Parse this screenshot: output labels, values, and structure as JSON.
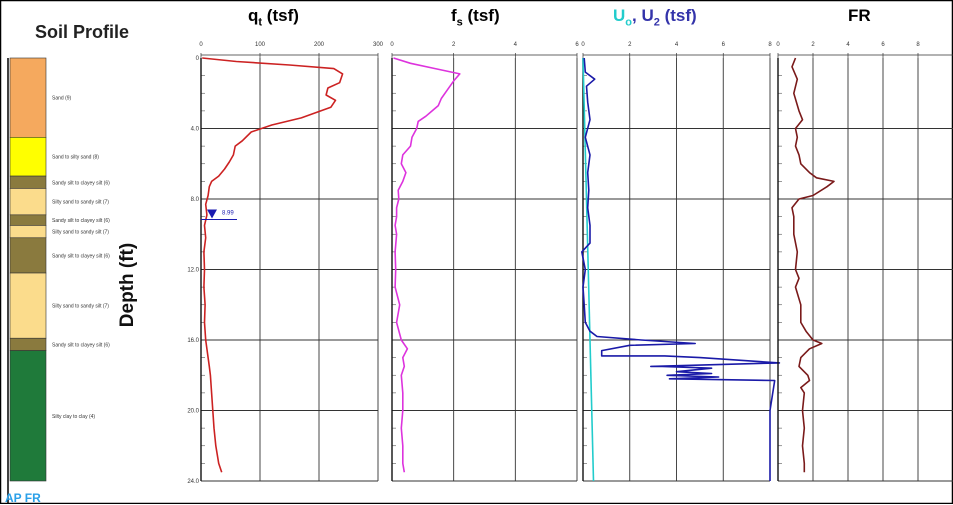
{
  "soil_profile": {
    "title": "Soil Profile",
    "layers": [
      {
        "label": "Sand (9)",
        "top": 0,
        "bottom": 4.5,
        "color": "#f5a95e"
      },
      {
        "label": "Sand to silty sand (8)",
        "top": 4.5,
        "bottom": 6.7,
        "color": "#ffff00"
      },
      {
        "label": "Sandy silt to clayey silt (6)",
        "top": 6.7,
        "bottom": 7.4,
        "color": "#8a7a3e"
      },
      {
        "label": "Silty sand to sandy silt (7)",
        "top": 7.4,
        "bottom": 8.9,
        "color": "#fbdc8c"
      },
      {
        "label": "Sandy silt to clayey silt (6)",
        "top": 8.9,
        "bottom": 9.5,
        "color": "#8a7a3e"
      },
      {
        "label": "Silty sand to sandy silt (7)",
        "top": 9.5,
        "bottom": 10.2,
        "color": "#fbdc8c"
      },
      {
        "label": "Sandy silt to clayey silt (6)",
        "top": 10.2,
        "bottom": 12.2,
        "color": "#8a7a3e"
      },
      {
        "label": "Silty sand to sandy silt (7)",
        "top": 12.2,
        "bottom": 15.9,
        "color": "#fbdc8c"
      },
      {
        "label": "Sandy silt to clayey silt (6)",
        "top": 15.9,
        "bottom": 16.6,
        "color": "#8a7a3e"
      },
      {
        "label": "Silty clay to clay (4)",
        "top": 16.6,
        "bottom": 24.0,
        "color": "#1f7a3a"
      }
    ]
  },
  "ylabel": "Depth (ft)",
  "corner_label": "AP  FR",
  "water_table": {
    "depth": 8.99,
    "label": "8.99"
  },
  "chart_data": [
    {
      "type": "line",
      "title_main": "q",
      "title_sub": "t",
      "title_rest": " (tsf)",
      "title_color": "#cc0000",
      "xlim": [
        0,
        300
      ],
      "ylim": [
        0,
        24
      ],
      "x_ticks": [
        0,
        100,
        200,
        300
      ],
      "x_tick_labels": [
        "0",
        "100",
        "200",
        "300"
      ],
      "y_ticks": [
        0,
        4,
        8,
        12,
        16,
        20,
        24
      ],
      "y_tick_labels": [
        "0",
        "4.0",
        "8.0",
        "12.0",
        "16.0",
        "20.0",
        "24.0"
      ],
      "series": [
        {
          "color": "#cc2222",
          "points": [
            [
              2,
              0.0
            ],
            [
              60,
              0.2
            ],
            [
              150,
              0.4
            ],
            [
              225,
              0.6
            ],
            [
              240,
              0.9
            ],
            [
              235,
              1.4
            ],
            [
              215,
              1.7
            ],
            [
              212,
              2.1
            ],
            [
              228,
              2.4
            ],
            [
              220,
              2.8
            ],
            [
              170,
              3.4
            ],
            [
              120,
              3.8
            ],
            [
              85,
              4.2
            ],
            [
              70,
              4.7
            ],
            [
              58,
              5.0
            ],
            [
              55,
              5.5
            ],
            [
              48,
              5.9
            ],
            [
              40,
              6.3
            ],
            [
              30,
              6.7
            ],
            [
              18,
              7.0
            ],
            [
              14,
              7.3
            ],
            [
              12,
              7.8
            ],
            [
              8,
              8.3
            ],
            [
              10,
              8.9
            ],
            [
              6,
              9.5
            ],
            [
              8,
              10.2
            ],
            [
              5,
              11.0
            ],
            [
              6,
              12.0
            ],
            [
              5,
              13.0
            ],
            [
              7,
              14.0
            ],
            [
              6,
              15.0
            ],
            [
              8,
              16.0
            ],
            [
              10,
              16.5
            ],
            [
              12,
              17.0
            ],
            [
              14,
              17.5
            ],
            [
              16,
              18.0
            ],
            [
              18,
              19.0
            ],
            [
              20,
              20.0
            ],
            [
              22,
              21.0
            ],
            [
              25,
              22.0
            ],
            [
              30,
              23.0
            ],
            [
              35,
              23.5
            ]
          ]
        }
      ]
    },
    {
      "type": "line",
      "title_main": "f",
      "title_sub": "s",
      "title_rest": " (tsf)",
      "title_color": "#ee44ee",
      "xlim": [
        0,
        6
      ],
      "ylim": [
        0,
        24
      ],
      "x_ticks": [
        0,
        2,
        4,
        6
      ],
      "x_tick_labels": [
        "0",
        "2",
        "4",
        "6"
      ],
      "series": [
        {
          "color": "#dd33dd",
          "points": [
            [
              0.05,
              0.0
            ],
            [
              0.6,
              0.3
            ],
            [
              1.4,
              0.6
            ],
            [
              2.2,
              0.9
            ],
            [
              2.0,
              1.3
            ],
            [
              1.8,
              1.8
            ],
            [
              1.6,
              2.3
            ],
            [
              1.5,
              2.7
            ],
            [
              1.3,
              3.0
            ],
            [
              1.1,
              3.3
            ],
            [
              0.85,
              3.6
            ],
            [
              0.8,
              4.0
            ],
            [
              0.65,
              4.5
            ],
            [
              0.6,
              5.0
            ],
            [
              0.35,
              5.5
            ],
            [
              0.3,
              6.0
            ],
            [
              0.45,
              6.5
            ],
            [
              0.35,
              7.0
            ],
            [
              0.2,
              7.5
            ],
            [
              0.22,
              8.0
            ],
            [
              0.15,
              8.5
            ],
            [
              0.15,
              9.0
            ],
            [
              0.1,
              9.5
            ],
            [
              0.15,
              10.0
            ],
            [
              0.1,
              11.0
            ],
            [
              0.12,
              12.0
            ],
            [
              0.1,
              13.0
            ],
            [
              0.25,
              14.0
            ],
            [
              0.15,
              15.0
            ],
            [
              0.3,
              16.0
            ],
            [
              0.5,
              16.5
            ],
            [
              0.35,
              17.0
            ],
            [
              0.4,
              17.5
            ],
            [
              0.3,
              18.0
            ],
            [
              0.35,
              19.0
            ],
            [
              0.35,
              20.0
            ],
            [
              0.3,
              21.0
            ],
            [
              0.35,
              22.0
            ],
            [
              0.35,
              23.0
            ],
            [
              0.4,
              23.5
            ]
          ]
        }
      ]
    },
    {
      "type": "line",
      "title_main": "U",
      "title_sub": "o",
      "title_mid": ", U",
      "title_sub2": "2",
      "title_rest": " (tsf)",
      "title_color_main": "#22cccc",
      "title_color_mid": "#3333aa",
      "xlim": [
        0,
        8
      ],
      "ylim": [
        0,
        24
      ],
      "x_ticks": [
        0,
        2,
        4,
        6,
        8
      ],
      "x_tick_labels": [
        "0",
        "2",
        "4",
        "6",
        "8"
      ],
      "series": [
        {
          "color": "#22cccc",
          "points": [
            [
              0.0,
              0.0
            ],
            [
              0.45,
              24.0
            ]
          ]
        },
        {
          "color": "#1a1aa8",
          "points": [
            [
              0.05,
              0.0
            ],
            [
              0.1,
              0.8
            ],
            [
              0.5,
              1.2
            ],
            [
              0.15,
              1.6
            ],
            [
              0.2,
              2.5
            ],
            [
              0.3,
              3.5
            ],
            [
              0.1,
              4.5
            ],
            [
              0.3,
              5.5
            ],
            [
              0.2,
              6.5
            ],
            [
              0.25,
              7.5
            ],
            [
              0.2,
              8.5
            ],
            [
              0.3,
              9.5
            ],
            [
              0.3,
              10.5
            ],
            [
              -0.05,
              11.0
            ],
            [
              0.1,
              12.0
            ],
            [
              0.0,
              13.0
            ],
            [
              0.05,
              14.0
            ],
            [
              0.1,
              15.0
            ],
            [
              0.3,
              15.5
            ],
            [
              0.6,
              15.8
            ],
            [
              2.5,
              16.0
            ],
            [
              4.8,
              16.2
            ],
            [
              2.0,
              16.3
            ],
            [
              0.8,
              16.6
            ],
            [
              0.8,
              16.9
            ],
            [
              3.5,
              16.9
            ],
            [
              5.0,
              17.0
            ],
            [
              8.4,
              17.3
            ],
            [
              2.9,
              17.5
            ],
            [
              3.4,
              17.5
            ],
            [
              5.5,
              17.6
            ],
            [
              4.0,
              17.8
            ],
            [
              5.5,
              17.9
            ],
            [
              3.6,
              18.0
            ],
            [
              5.8,
              18.1
            ],
            [
              3.7,
              18.2
            ],
            [
              8.2,
              18.3
            ],
            [
              8.0,
              20.0
            ],
            [
              8.0,
              22.0
            ],
            [
              8.0,
              24.0
            ]
          ]
        }
      ]
    },
    {
      "type": "line",
      "title_main": "FR",
      "title_color": "#8b1a1a",
      "xlim": [
        0,
        10
      ],
      "ylim": [
        0,
        24
      ],
      "x_ticks": [
        0,
        2,
        4,
        6,
        8
      ],
      "x_tick_labels": [
        "0",
        "2",
        "4",
        "6",
        "8"
      ],
      "series": [
        {
          "color": "#7a1a1a",
          "points": [
            [
              1.0,
              0.0
            ],
            [
              0.8,
              0.5
            ],
            [
              1.1,
              1.2
            ],
            [
              0.9,
              2.0
            ],
            [
              1.2,
              3.0
            ],
            [
              1.4,
              3.5
            ],
            [
              1.0,
              4.0
            ],
            [
              1.1,
              4.5
            ],
            [
              1.0,
              5.0
            ],
            [
              1.2,
              5.5
            ],
            [
              1.3,
              6.0
            ],
            [
              1.8,
              6.5
            ],
            [
              2.2,
              6.8
            ],
            [
              3.2,
              7.0
            ],
            [
              2.8,
              7.3
            ],
            [
              2.0,
              7.8
            ],
            [
              1.2,
              8.0
            ],
            [
              0.8,
              8.5
            ],
            [
              0.9,
              9.0
            ],
            [
              0.9,
              10.0
            ],
            [
              1.1,
              11.0
            ],
            [
              1.0,
              12.0
            ],
            [
              1.2,
              12.5
            ],
            [
              1.0,
              13.0
            ],
            [
              1.3,
              14.0
            ],
            [
              1.3,
              15.0
            ],
            [
              1.6,
              15.5
            ],
            [
              2.0,
              16.0
            ],
            [
              2.5,
              16.2
            ],
            [
              1.8,
              16.5
            ],
            [
              1.3,
              17.0
            ],
            [
              1.2,
              17.5
            ],
            [
              1.7,
              18.0
            ],
            [
              1.8,
              18.3
            ],
            [
              1.3,
              18.7
            ],
            [
              1.5,
              19.0
            ],
            [
              1.4,
              20.0
            ],
            [
              1.5,
              21.0
            ],
            [
              1.4,
              22.0
            ],
            [
              1.5,
              23.0
            ],
            [
              1.5,
              23.5
            ]
          ]
        }
      ]
    }
  ]
}
